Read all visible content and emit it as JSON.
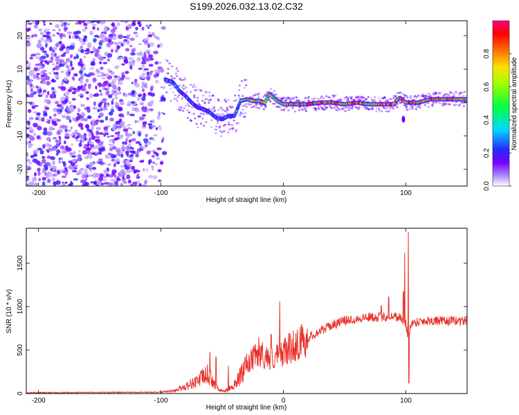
{
  "title": "S199.2026.032.13.02.C32",
  "colors": {
    "snr_line": "#e8322b",
    "background": "#ffffff",
    "axis": "#000000",
    "dot_purple": "#6a00e6"
  },
  "chart_data": [
    {
      "type": "heatmap",
      "name": "spectrogram",
      "title": "S199.2026.032.13.02.C32",
      "xlabel": "Height of straight line (km)",
      "ylabel": "Frequency (Hz)",
      "xlim": [
        -210,
        150
      ],
      "ylim": [
        -25,
        24.5
      ],
      "xticks": [
        -200,
        -100,
        0,
        100
      ],
      "yticks": [
        -20,
        -10,
        0,
        10,
        20
      ],
      "colorbar": {
        "label": "Normalized spectral amplitude",
        "range": [
          0,
          1
        ],
        "ticks": [
          "0.0",
          "0.2",
          "0.4",
          "0.6",
          "0.8"
        ],
        "tick_values": [
          0,
          0.2,
          0.4,
          0.6,
          0.8
        ],
        "stops": [
          {
            "value": 0.0,
            "color": "#ffffff"
          },
          {
            "value": 0.06,
            "color": "#b090ff"
          },
          {
            "value": 0.14,
            "color": "#7a00ff"
          },
          {
            "value": 0.22,
            "color": "#2828ff"
          },
          {
            "value": 0.34,
            "color": "#00d8ff"
          },
          {
            "value": 0.48,
            "color": "#00ff40"
          },
          {
            "value": 0.62,
            "color": "#a0ff00"
          },
          {
            "value": 0.72,
            "color": "#ffe000"
          },
          {
            "value": 0.82,
            "color": "#ff7000"
          },
          {
            "value": 0.92,
            "color": "#ff0000"
          },
          {
            "value": 1.0,
            "color": "#ff0080"
          }
        ]
      },
      "noise_region": {
        "x_range": [
          -210,
          -95
        ],
        "y_range": [
          -25,
          24.5
        ]
      },
      "ridge": [
        {
          "x": -97,
          "y": 7
        },
        {
          "x": -90,
          "y": 6
        },
        {
          "x": -85,
          "y": 3.5
        },
        {
          "x": -80,
          "y": 2
        },
        {
          "x": -75,
          "y": 0
        },
        {
          "x": -70,
          "y": -1.5
        },
        {
          "x": -65,
          "y": -2
        },
        {
          "x": -60,
          "y": -3
        },
        {
          "x": -55,
          "y": -4.5
        },
        {
          "x": -50,
          "y": -5
        },
        {
          "x": -45,
          "y": -4
        },
        {
          "x": -40,
          "y": -4
        },
        {
          "x": -35,
          "y": 0.5
        },
        {
          "x": -30,
          "y": 1
        },
        {
          "x": -25,
          "y": 0.5
        },
        {
          "x": -20,
          "y": 0.5
        },
        {
          "x": -15,
          "y": 0
        },
        {
          "x": -12,
          "y": 2.5
        },
        {
          "x": -8,
          "y": 1.5
        },
        {
          "x": -5,
          "y": 0.5
        },
        {
          "x": 0,
          "y": -0.5
        },
        {
          "x": 10,
          "y": -0.5
        },
        {
          "x": 20,
          "y": -0.5
        },
        {
          "x": 30,
          "y": 0
        },
        {
          "x": 40,
          "y": 0
        },
        {
          "x": 50,
          "y": -0.5
        },
        {
          "x": 60,
          "y": 0
        },
        {
          "x": 70,
          "y": -0.5
        },
        {
          "x": 80,
          "y": -0.5
        },
        {
          "x": 90,
          "y": -0.5
        },
        {
          "x": 95,
          "y": 1.5
        },
        {
          "x": 100,
          "y": 0
        },
        {
          "x": 110,
          "y": 0
        },
        {
          "x": 120,
          "y": 1
        },
        {
          "x": 130,
          "y": 1
        },
        {
          "x": 140,
          "y": 1
        },
        {
          "x": 150,
          "y": 1
        }
      ],
      "features": [
        {
          "x": 98,
          "y": -5,
          "note": "spike below ridge"
        }
      ]
    },
    {
      "type": "line",
      "name": "snr",
      "xlabel": "Height of straight line (km)",
      "ylabel": "SNR (10 * v/v)",
      "xlim": [
        -210,
        150
      ],
      "ylim": [
        0,
        1900
      ],
      "xticks": [
        -200,
        -100,
        0,
        100
      ],
      "yticks": [
        0,
        500,
        1000,
        1500
      ],
      "series": [
        {
          "name": "SNR",
          "baseline": [
            [
              -210,
              10
            ],
            [
              -100,
              15
            ],
            [
              -90,
              30
            ],
            [
              -80,
              80
            ],
            [
              -70,
              150
            ],
            [
              -62,
              220
            ],
            [
              -58,
              150
            ],
            [
              -53,
              40
            ],
            [
              -48,
              25
            ],
            [
              -42,
              80
            ],
            [
              -36,
              180
            ],
            [
              -30,
              300
            ],
            [
              -24,
              420
            ],
            [
              -18,
              450
            ],
            [
              -10,
              400
            ],
            [
              -5,
              430
            ],
            [
              0,
              480
            ],
            [
              10,
              560
            ],
            [
              20,
              640
            ],
            [
              30,
              720
            ],
            [
              40,
              790
            ],
            [
              50,
              840
            ],
            [
              60,
              860
            ],
            [
              70,
              880
            ],
            [
              80,
              880
            ],
            [
              90,
              890
            ],
            [
              95,
              880
            ],
            [
              100,
              800
            ],
            [
              102,
              600
            ],
            [
              104,
              800
            ],
            [
              110,
              830
            ],
            [
              120,
              840
            ],
            [
              130,
              830
            ],
            [
              140,
              835
            ],
            [
              150,
              840
            ]
          ],
          "spikes": [
            [
              -60,
              480
            ],
            [
              -55,
              420
            ],
            [
              -45,
              320
            ],
            [
              -30,
              460
            ],
            [
              -20,
              650
            ],
            [
              -10,
              680
            ],
            [
              -3,
              1060
            ],
            [
              80,
              1010
            ],
            [
              86,
              1110
            ],
            [
              98,
              1170
            ],
            [
              99,
              1620
            ],
            [
              102,
              1860
            ],
            [
              102.5,
              120
            ]
          ]
        }
      ]
    }
  ]
}
